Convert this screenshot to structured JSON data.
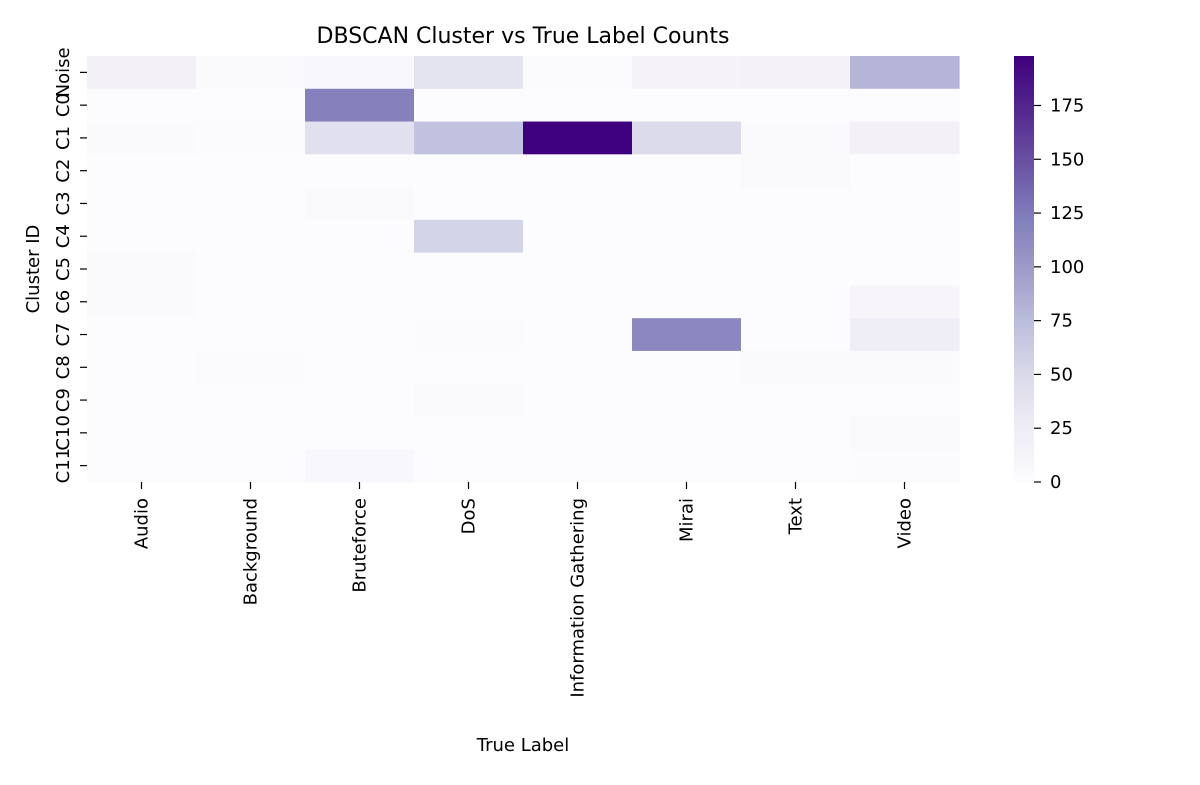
{
  "chart_data": {
    "type": "heatmap",
    "title": "DBSCAN Cluster vs True Label Counts",
    "xlabel": "True Label",
    "ylabel": "Cluster ID",
    "x_categories": [
      "Audio",
      "Background",
      "Bruteforce",
      "DoS",
      "Information Gathering",
      "Mirai",
      "Text",
      "Video"
    ],
    "y_categories": [
      "Noise",
      "C0",
      "C1",
      "C2",
      "C3",
      "C4",
      "C5",
      "C6",
      "C7",
      "C8",
      "C9",
      "C10",
      "C11"
    ],
    "values": [
      [
        18,
        3,
        7,
        38,
        2,
        14,
        16,
        80
      ],
      [
        0,
        0,
        120,
        0,
        0,
        0,
        0,
        0
      ],
      [
        4,
        1,
        42,
        70,
        198,
        48,
        4,
        18
      ],
      [
        0,
        0,
        0,
        0,
        0,
        0,
        5,
        0
      ],
      [
        0,
        0,
        5,
        0,
        0,
        0,
        0,
        0
      ],
      [
        0,
        0,
        0,
        55,
        0,
        0,
        0,
        0
      ],
      [
        4,
        0,
        0,
        0,
        0,
        0,
        0,
        0
      ],
      [
        4,
        0,
        0,
        0,
        0,
        0,
        0,
        10
      ],
      [
        0,
        0,
        0,
        2,
        0,
        115,
        0,
        25
      ],
      [
        0,
        2,
        0,
        0,
        0,
        0,
        4,
        4
      ],
      [
        0,
        0,
        0,
        4,
        0,
        0,
        0,
        0
      ],
      [
        0,
        0,
        0,
        0,
        0,
        0,
        0,
        5
      ],
      [
        0,
        0,
        7,
        0,
        0,
        0,
        0,
        1
      ]
    ],
    "colormap": "Purples",
    "colorbar": {
      "vmin": 0,
      "vmax": 198,
      "ticks": [
        0,
        25,
        50,
        75,
        100,
        125,
        150,
        175
      ],
      "tick_labels": [
        "0",
        "25",
        "50",
        "75",
        "100",
        "125",
        "150",
        "175"
      ]
    },
    "colors": {
      "low": "#fcfbfd",
      "high": "#3f007d"
    }
  }
}
